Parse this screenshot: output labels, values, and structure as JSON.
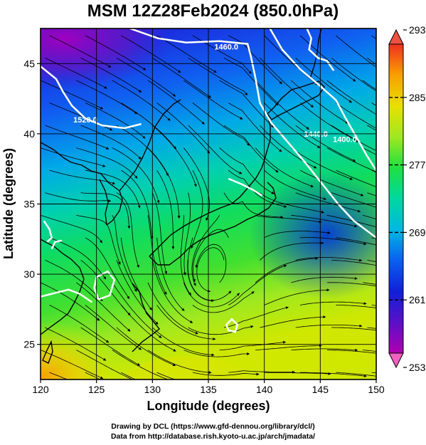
{
  "title": "MSM 12Z28Feb2024 (850.0hPa)",
  "credits": {
    "line1": "Drawing by DCL (https://www.gfd-dennou.org/library/dcl/)",
    "line2": "Data from http://database.rish.kyoto-u.ac.jp/arch/jmadata/"
  },
  "chart_data": {
    "type": "heatmap",
    "xlabel": "Longitude (degrees)",
    "ylabel": "Latitude  (degrees)",
    "xlim": [
      120,
      150
    ],
    "ylim": [
      22.5,
      47.5
    ],
    "xticks": [
      "120",
      "125",
      "130",
      "135",
      "140",
      "145",
      "150"
    ],
    "yticks": [
      "25",
      "30",
      "35",
      "40",
      "45"
    ],
    "grid": true,
    "colorbar": {
      "min": 253,
      "max": 293,
      "tick_labels": [
        "293",
        "285",
        "277",
        "269",
        "261",
        "253"
      ],
      "colors": [
        "#b000b0",
        "#5a10c8",
        "#1020d8",
        "#0a60f0",
        "#00b8e0",
        "#00d8a0",
        "#20e040",
        "#a0e820",
        "#e8e000",
        "#f8a000",
        "#f03020"
      ]
    },
    "contour_labels": [
      {
        "text": "1460.0",
        "lon": 136.6,
        "lat": 46.0
      },
      {
        "text": "1520.0",
        "lon": 124.0,
        "lat": 40.8
      },
      {
        "text": "1440.0",
        "lon": 144.6,
        "lat": 39.8
      },
      {
        "text": "1400.0",
        "lon": 147.2,
        "lat": 39.4
      }
    ],
    "contour_lines": [
      [
        [
          128.0,
          47.5
        ],
        [
          130.5,
          46.8
        ],
        [
          133.0,
          46.5
        ],
        [
          136.0,
          46.6
        ],
        [
          138.5,
          46.4
        ],
        [
          138.8,
          45.5
        ],
        [
          139.2,
          44.0
        ],
        [
          139.6,
          42.2
        ],
        [
          140.6,
          40.8
        ],
        [
          142.0,
          39.5
        ],
        [
          143.6,
          38.0
        ],
        [
          145.0,
          36.6
        ],
        [
          146.6,
          35.0
        ],
        [
          148.0,
          33.8
        ],
        [
          150.0,
          32.6
        ]
      ],
      [
        [
          140.5,
          47.5
        ],
        [
          141.6,
          46.0
        ],
        [
          143.2,
          44.6
        ],
        [
          145.0,
          43.4
        ],
        [
          146.4,
          42.4
        ],
        [
          147.2,
          41.2
        ],
        [
          148.2,
          39.8
        ],
        [
          149.2,
          38.4
        ],
        [
          150.0,
          37.4
        ]
      ],
      [
        [
          120.0,
          44.8
        ],
        [
          121.4,
          43.9
        ],
        [
          122.0,
          43.0
        ],
        [
          122.8,
          42.0
        ],
        [
          124.0,
          41.1
        ],
        [
          125.5,
          40.6
        ],
        [
          127.5,
          40.4
        ],
        [
          129.0,
          40.7
        ]
      ],
      [
        [
          143.8,
          47.5
        ],
        [
          144.2,
          46.8
        ],
        [
          144.0,
          46.0
        ],
        [
          144.8,
          45.4
        ],
        [
          145.6,
          45.2
        ],
        [
          146.2,
          44.5
        ]
      ],
      [
        [
          136.8,
          36.8
        ],
        [
          138.0,
          36.4
        ],
        [
          139.0,
          36.0
        ],
        [
          139.8,
          35.6
        ]
      ],
      [
        [
          120.0,
          28.4
        ],
        [
          121.5,
          28.7
        ],
        [
          122.5,
          28.9
        ],
        [
          123.5,
          28.6
        ],
        [
          124.6,
          28.0
        ]
      ],
      [
        [
          120.3,
          33.8
        ],
        [
          120.8,
          33.2
        ],
        [
          121.0,
          32.6
        ],
        [
          120.6,
          32.3
        ]
      ],
      [
        [
          125.2,
          28.2
        ],
        [
          126.2,
          28.5
        ],
        [
          126.6,
          29.6
        ],
        [
          126.0,
          30.2
        ],
        [
          125.0,
          29.8
        ],
        [
          124.8,
          29.0
        ],
        [
          125.2,
          28.2
        ]
      ],
      [
        [
          136.6,
          26.4
        ],
        [
          137.1,
          26.8
        ],
        [
          137.6,
          26.4
        ],
        [
          137.4,
          25.9
        ],
        [
          136.8,
          26.0
        ],
        [
          136.6,
          26.4
        ]
      ],
      [
        [
          121.0,
          31.8
        ],
        [
          121.3,
          32.3
        ],
        [
          121.9,
          32.4
        ]
      ]
    ],
    "temperature_pattern": {
      "cold_center": {
        "lon": 121.5,
        "lat": 46.5,
        "value": 253
      },
      "warm_center": {
        "lon": 120.5,
        "lat": 23.0,
        "value": 287
      },
      "gradient": "temperature increases from north to south"
    }
  }
}
